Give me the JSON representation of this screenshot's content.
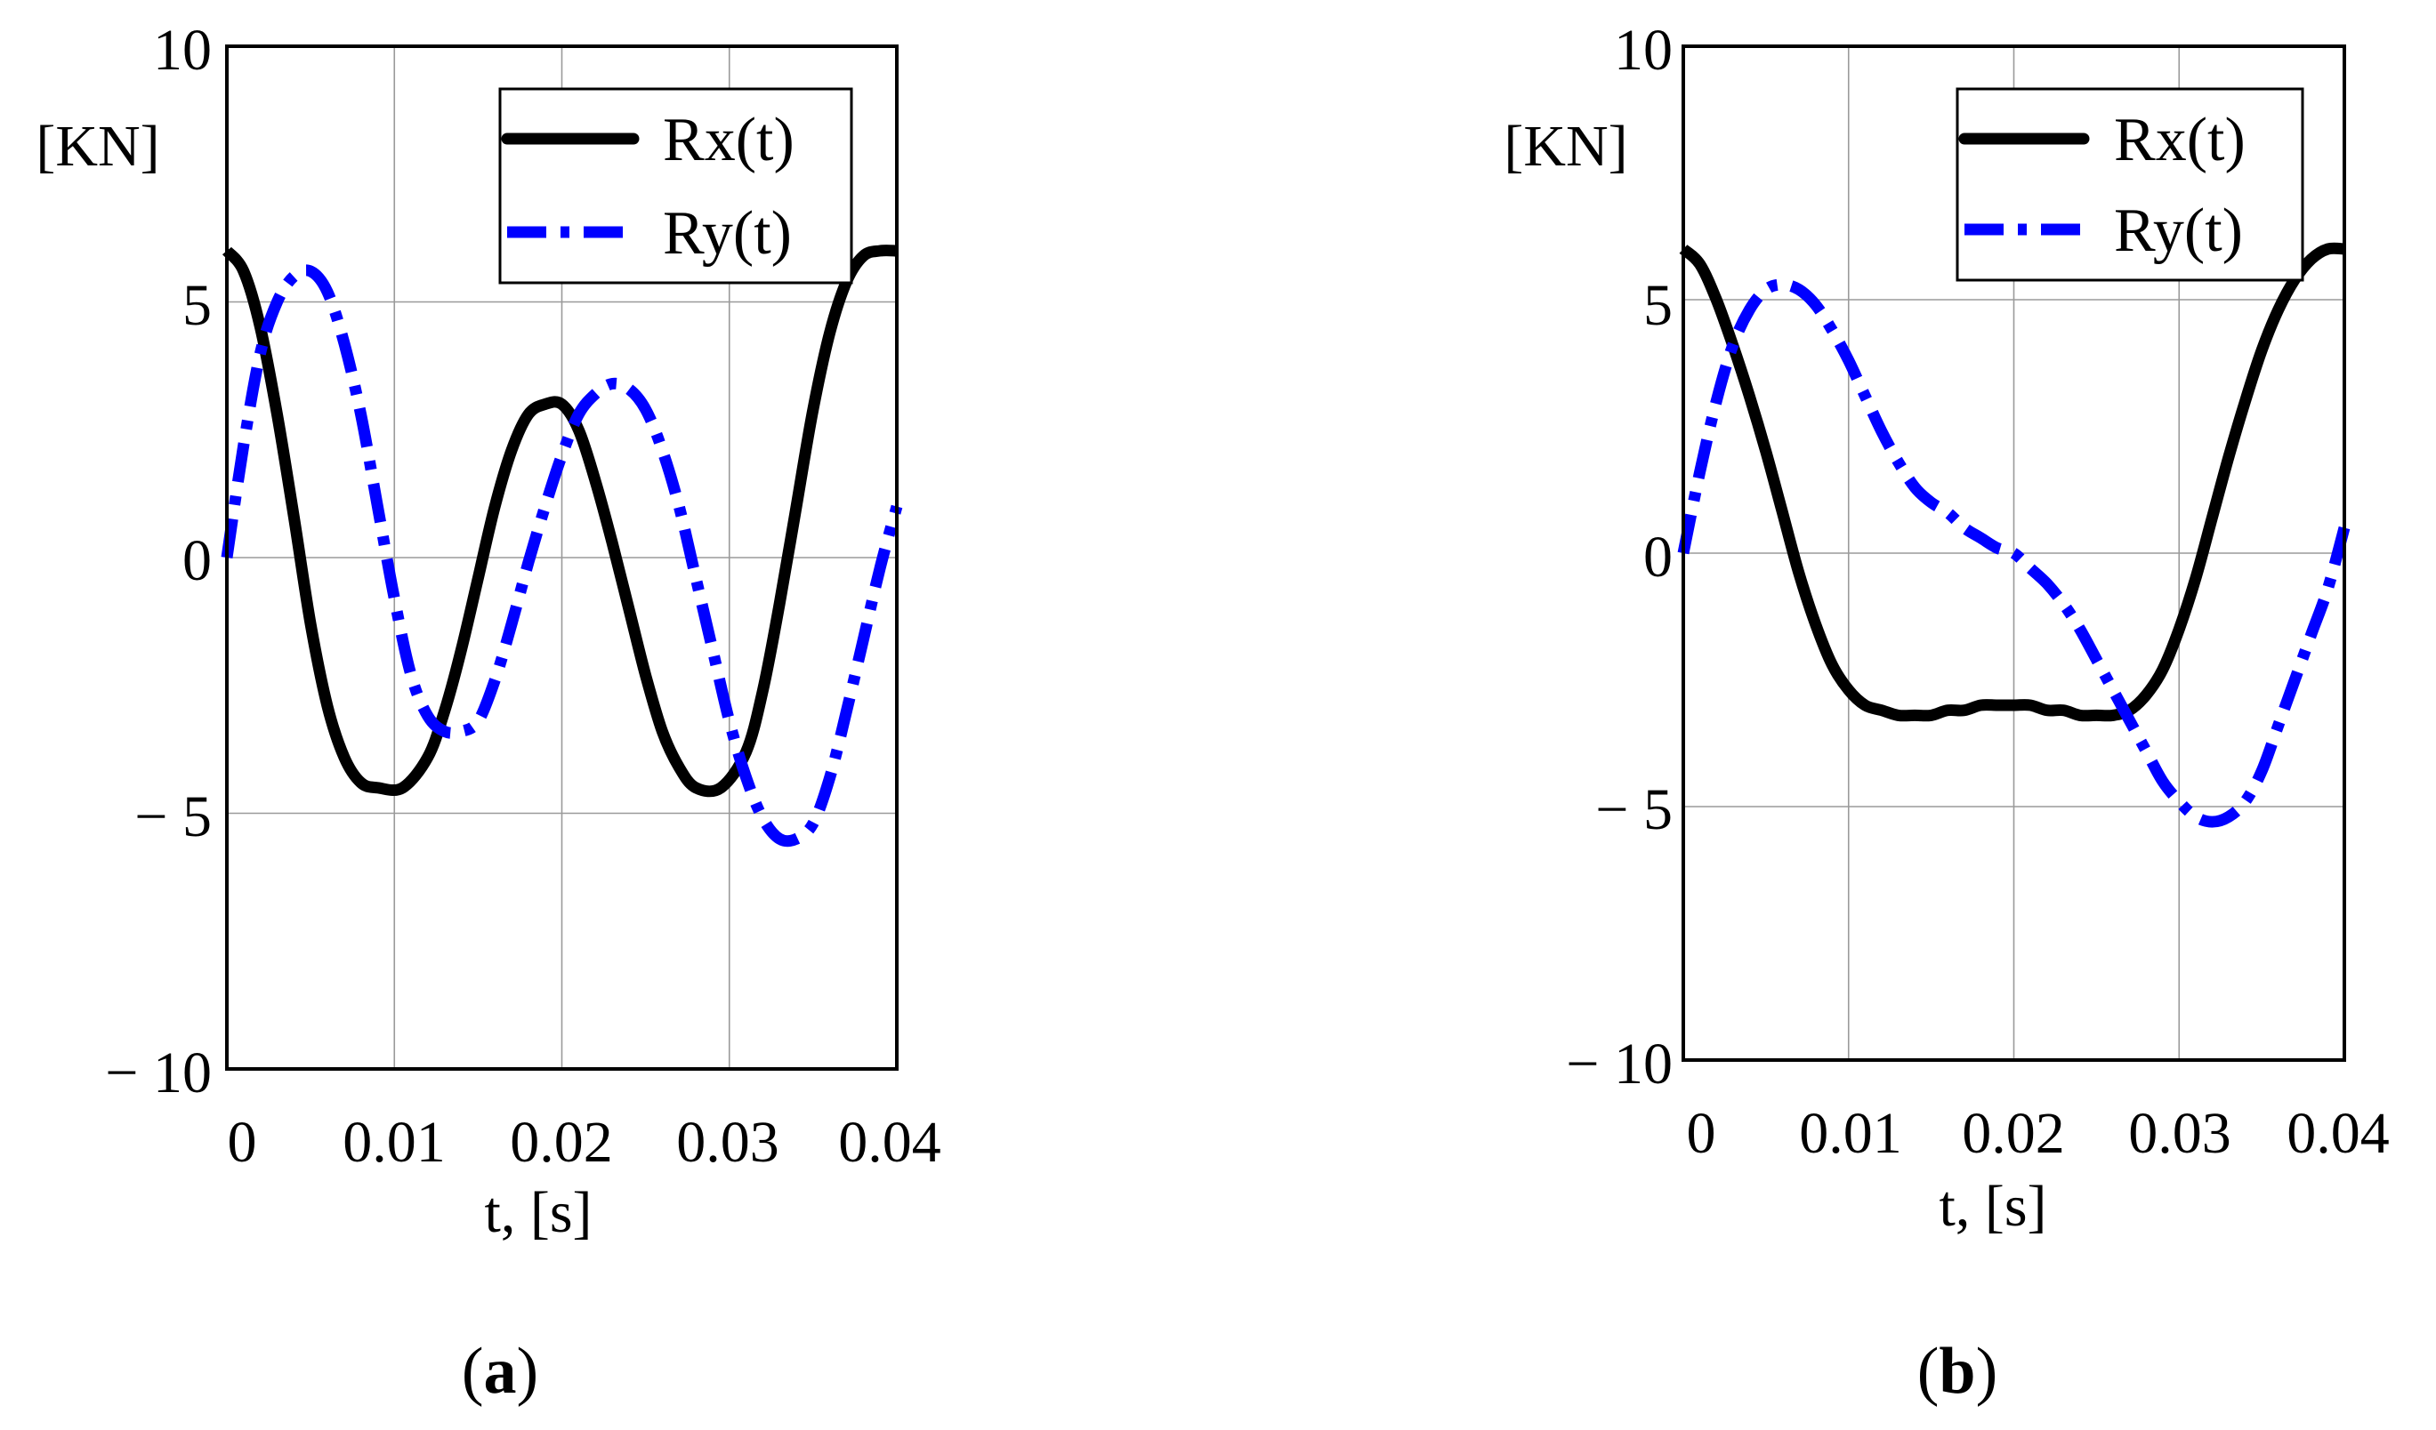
{
  "chart_data": [
    {
      "id": "a",
      "type": "line",
      "panel_label": "a",
      "ylabel": "[KN]",
      "xlabel": "t, [s]",
      "xlim": [
        0,
        0.04
      ],
      "ylim": [
        -10,
        10
      ],
      "xticks": [
        0,
        0.01,
        0.02,
        0.03,
        0.04
      ],
      "xtick_labels": [
        "0",
        "0.01",
        "0.02",
        "0.03",
        "0.04"
      ],
      "yticks": [
        10,
        5,
        0,
        -5,
        -10
      ],
      "ytick_labels": [
        "10",
        "5",
        "0",
        "− 5",
        "− 10"
      ],
      "grid": true,
      "legend_position": "top-right",
      "series": [
        {
          "name": "Rx(t)",
          "color": "#000000",
          "style": "solid",
          "x": [
            0,
            0.001,
            0.002,
            0.003,
            0.004,
            0.005,
            0.006,
            0.007,
            0.008,
            0.009,
            0.0105,
            0.012,
            0.013,
            0.014,
            0.015,
            0.016,
            0.017,
            0.018,
            0.019,
            0.02,
            0.021,
            0.022,
            0.023,
            0.024,
            0.025,
            0.026,
            0.027,
            0.028,
            0.0295,
            0.031,
            0.032,
            0.033,
            0.034,
            0.035,
            0.036,
            0.037,
            0.038,
            0.039,
            0.04
          ],
          "y": [
            6.0,
            5.6,
            4.5,
            2.8,
            0.8,
            -1.3,
            -2.9,
            -3.9,
            -4.4,
            -4.5,
            -4.5,
            -3.9,
            -3.0,
            -1.8,
            -0.4,
            1.0,
            2.1,
            2.8,
            3.0,
            3.0,
            2.5,
            1.5,
            0.3,
            -1.0,
            -2.3,
            -3.4,
            -4.1,
            -4.5,
            -4.5,
            -3.8,
            -2.6,
            -0.9,
            1.0,
            2.9,
            4.4,
            5.4,
            5.9,
            6.0,
            6.0
          ]
        },
        {
          "name": "Ry(t)",
          "color": "#0000ff",
          "style": "dashdot",
          "x": [
            0,
            0.001,
            0.002,
            0.003,
            0.004,
            0.005,
            0.006,
            0.007,
            0.008,
            0.009,
            0.01,
            0.011,
            0.012,
            0.013,
            0.014,
            0.015,
            0.016,
            0.017,
            0.018,
            0.019,
            0.02,
            0.021,
            0.022,
            0.023,
            0.024,
            0.025,
            0.026,
            0.027,
            0.028,
            0.029,
            0.03,
            0.031,
            0.032,
            0.033,
            0.034,
            0.035,
            0.036,
            0.037,
            0.038,
            0.039,
            0.04
          ],
          "y": [
            0.0,
            2.2,
            4.0,
            5.0,
            5.5,
            5.6,
            5.2,
            4.2,
            2.8,
            1.0,
            -0.8,
            -2.3,
            -3.1,
            -3.4,
            -3.4,
            -3.2,
            -2.4,
            -1.3,
            -0.1,
            1.0,
            2.0,
            2.8,
            3.2,
            3.4,
            3.3,
            2.9,
            2.1,
            1.0,
            -0.4,
            -1.8,
            -3.2,
            -4.3,
            -5.1,
            -5.5,
            -5.5,
            -5.2,
            -4.3,
            -3.0,
            -1.6,
            -0.2,
            1.0
          ]
        }
      ]
    },
    {
      "id": "b",
      "type": "line",
      "panel_label": "b",
      "ylabel": "[KN]",
      "xlabel": "t, [s]",
      "xlim": [
        0,
        0.04
      ],
      "ylim": [
        -10,
        10
      ],
      "xticks": [
        0,
        0.01,
        0.02,
        0.03,
        0.04
      ],
      "xtick_labels": [
        "0",
        "0.01",
        "0.02",
        "0.03",
        "0.04"
      ],
      "yticks": [
        10,
        5,
        0,
        -5,
        -10
      ],
      "ytick_labels": [
        "10",
        "5",
        "0",
        "− 5",
        "− 10"
      ],
      "grid": true,
      "legend_position": "top-right",
      "series": [
        {
          "name": "Rx(t)",
          "color": "#000000",
          "style": "solid",
          "x": [
            0,
            0.001,
            0.002,
            0.003,
            0.004,
            0.005,
            0.006,
            0.007,
            0.008,
            0.009,
            0.01,
            0.011,
            0.012,
            0.013,
            0.014,
            0.015,
            0.016,
            0.017,
            0.018,
            0.019,
            0.02,
            0.021,
            0.022,
            0.023,
            0.024,
            0.025,
            0.026,
            0.027,
            0.028,
            0.029,
            0.03,
            0.031,
            0.032,
            0.033,
            0.034,
            0.035,
            0.036,
            0.037,
            0.038,
            0.039,
            0.04
          ],
          "y": [
            6.0,
            5.7,
            5.0,
            4.1,
            3.1,
            2.0,
            0.8,
            -0.4,
            -1.4,
            -2.2,
            -2.7,
            -3.0,
            -3.1,
            -3.2,
            -3.2,
            -3.2,
            -3.1,
            -3.1,
            -3.0,
            -3.0,
            -3.0,
            -3.0,
            -3.1,
            -3.1,
            -3.2,
            -3.2,
            -3.2,
            -3.1,
            -2.8,
            -2.3,
            -1.5,
            -0.5,
            0.7,
            1.9,
            3.0,
            4.0,
            4.8,
            5.4,
            5.8,
            6.0,
            6.0
          ]
        },
        {
          "name": "Ry(t)",
          "color": "#0000ff",
          "style": "dashdot",
          "x": [
            0,
            0.001,
            0.002,
            0.003,
            0.004,
            0.005,
            0.006,
            0.007,
            0.008,
            0.009,
            0.01,
            0.011,
            0.012,
            0.013,
            0.014,
            0.015,
            0.016,
            0.017,
            0.018,
            0.019,
            0.02,
            0.021,
            0.022,
            0.023,
            0.024,
            0.025,
            0.026,
            0.027,
            0.028,
            0.029,
            0.03,
            0.031,
            0.032,
            0.033,
            0.034,
            0.035,
            0.036,
            0.037,
            0.038,
            0.039,
            0.04
          ],
          "y": [
            0.0,
            1.6,
            3.0,
            4.1,
            4.8,
            5.2,
            5.3,
            5.2,
            4.9,
            4.4,
            3.8,
            3.1,
            2.4,
            1.8,
            1.3,
            1.0,
            0.8,
            0.5,
            0.3,
            0.1,
            0.0,
            -0.3,
            -0.6,
            -1.0,
            -1.5,
            -2.1,
            -2.7,
            -3.3,
            -3.9,
            -4.5,
            -4.9,
            -5.2,
            -5.3,
            -5.2,
            -4.9,
            -4.3,
            -3.4,
            -2.5,
            -1.6,
            -0.7,
            0.5
          ]
        }
      ]
    }
  ]
}
